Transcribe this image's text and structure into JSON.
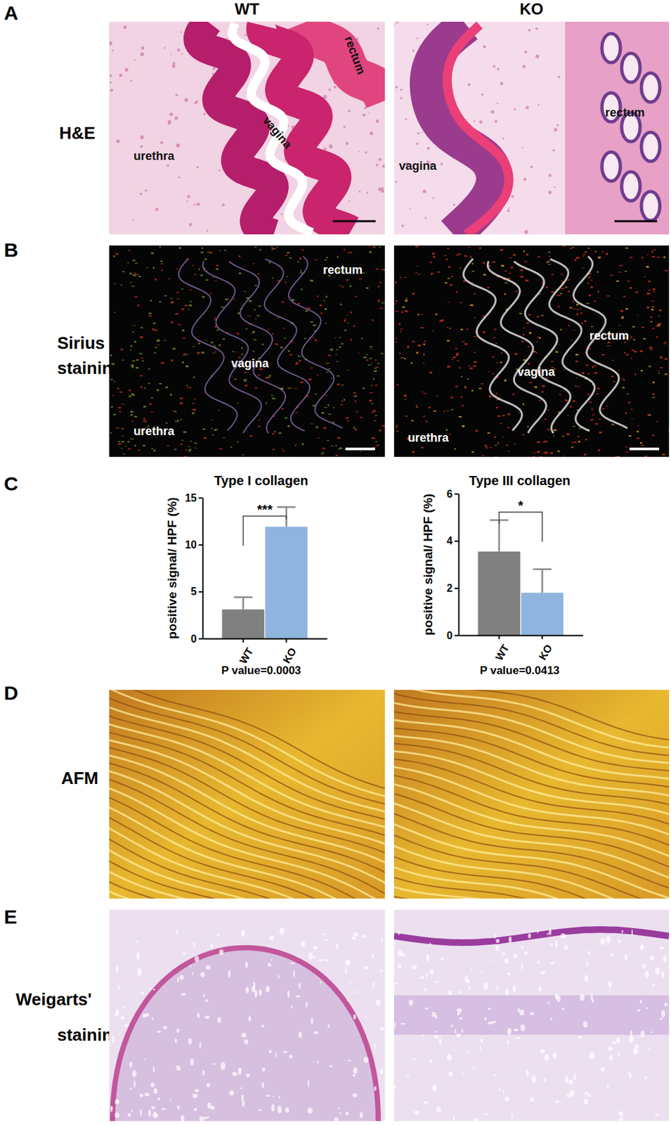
{
  "figure": {
    "panel_letters": [
      "A",
      "B",
      "C",
      "D",
      "E"
    ],
    "columns": [
      "WT",
      "KO"
    ],
    "row_labels": [
      [
        "H&E"
      ],
      [
        "Sirius Red",
        "staining"
      ],
      [
        "AFM"
      ],
      [
        "Weigarts'",
        "staining"
      ]
    ],
    "he_labels": {
      "WT": [
        "urethra",
        "vagina",
        "rectum"
      ],
      "KO": [
        "vagina",
        "rectum"
      ]
    },
    "sirius_labels": {
      "WT": [
        "rectum",
        "vagina",
        "urethra"
      ],
      "KO": [
        "rectum",
        "vagina",
        "urethra"
      ]
    }
  },
  "chart_data": [
    {
      "type": "bar",
      "title": "Type I collagen",
      "categories": [
        "WT",
        "KO"
      ],
      "values": [
        3.1,
        11.9
      ],
      "errors": [
        1.3,
        2.1
      ],
      "colors": [
        "#808080",
        "#8fb4de"
      ],
      "ylim": [
        0,
        15
      ],
      "yticks": [
        0,
        5,
        10,
        15
      ],
      "y_label": "positive signal/ HPF (%)",
      "significance": "***",
      "annotation": "P value=0.0003"
    },
    {
      "type": "bar",
      "title": "Type III collagen",
      "categories": [
        "WT",
        "KO"
      ],
      "values": [
        3.55,
        1.8
      ],
      "errors": [
        1.33,
        1.0
      ],
      "colors": [
        "#808080",
        "#8fb4de"
      ],
      "ylim": [
        0,
        6
      ],
      "yticks": [
        0,
        2,
        4,
        6
      ],
      "y_label": "positive signal/ HPF (%)",
      "significance": "*",
      "annotation": "P value=0.0413"
    }
  ]
}
